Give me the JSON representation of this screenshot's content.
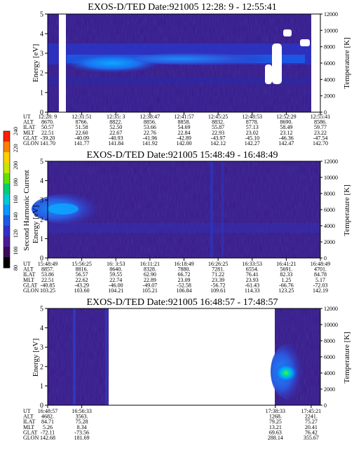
{
  "chart_data": {
    "type": "heatmap",
    "y_axis": {
      "label": "Energy [eV]",
      "range": [
        0,
        5
      ],
      "ticks": [
        "0",
        "1",
        "2",
        "3",
        "4",
        "5"
      ]
    },
    "y2_axis": {
      "label": "Temperature [K]",
      "range": [
        0,
        12000
      ],
      "ticks": [
        "0",
        "2000",
        "4000",
        "6000",
        "8000",
        "10000",
        "12000"
      ]
    },
    "colorbar": {
      "label": "Second Harmonic Current",
      "range": [
        80,
        240
      ],
      "ticks": [
        "80",
        "100",
        "120",
        "140",
        "160",
        "180",
        "200",
        "220",
        "240"
      ],
      "colors": [
        "#000000",
        "#3c0a5c",
        "#4a1a9a",
        "#3030c8",
        "#1a5ae6",
        "#0a96ff",
        "#00c8d2",
        "#00d070",
        "#60e000",
        "#c8e600",
        "#ffd000",
        "#ff8000",
        "#ff1e00"
      ]
    },
    "panels": [
      {
        "title": "EXOS-D/TED   Date:921005  12:28: 9 - 12:55:41",
        "ephemeris": {
          "labels": [
            "UT",
            "ALT",
            "ILAT",
            "MLT",
            "GLAT",
            "GLON"
          ],
          "columns": [
            [
              "12:28: 9",
              "8670.",
              "50.57",
              "22.51",
              "-39.20",
              "141.70"
            ],
            [
              "12:31:51",
              "8766.",
              "51.58",
              "22.60",
              "-40.09",
              "141.77"
            ],
            [
              "12:35: 3",
              "8822.",
              "52.50",
              "22.67",
              "-40.93",
              "141.84"
            ],
            [
              "12:38:47",
              "8856.",
              "53.66",
              "22.76",
              "-41.96",
              "141.92"
            ],
            [
              "12:41:57",
              "8858.",
              "54.69",
              "22.84",
              "-42.89",
              "142.00"
            ],
            [
              "12:45:25",
              "8832.",
              "55.87",
              "22.93",
              "-43.97",
              "142.12"
            ],
            [
              "12:48:53",
              "8778.",
              "57.13",
              "23.02",
              "-45.10",
              "142.27"
            ],
            [
              "12:52:29",
              "8690.",
              "58.49",
              "23.12",
              "-46.36",
              "142.47"
            ],
            [
              "12:55:41",
              "8586.",
              "59.77",
              "23.22",
              "-47.54",
              "142.70"
            ]
          ]
        }
      },
      {
        "title": "EXOS-D/TED   Date:921005  15:48:49 - 16:48:49",
        "ephemeris": {
          "labels": [
            "UT",
            "ALT",
            "ILAT",
            "MLT",
            "GLAT",
            "GLON"
          ],
          "columns": [
            [
              "15:48:49",
              "8857.",
              "53.86",
              "22.51",
              "-40.85",
              "103.25"
            ],
            [
              "15:56:25",
              "8816.",
              "56.57",
              "22.62",
              "-43.29",
              "103.60"
            ],
            [
              "16: 3:53",
              "8640.",
              "59.55",
              "22.74",
              "-46.00",
              "104.21"
            ],
            [
              "16:11:21",
              "8328.",
              "62.90",
              "22.89",
              "-49.07",
              "105.21"
            ],
            [
              "16:18:49",
              "7880.",
              "66.72",
              "23.09",
              "-52.58",
              "106.84"
            ],
            [
              "16:26:25",
              "7281.",
              "71.22",
              "23.39",
              "-56.72",
              "109.61"
            ],
            [
              "16:33:53",
              "6554.",
              "76.41",
              "23.93",
              "-61.43",
              "114.33"
            ],
            [
              "16:41:21",
              "5691.",
              "82.33",
              "1.25",
              "-66.76",
              "123.25"
            ],
            [
              "16:48:49",
              "4701.",
              "84.78",
              "5.17",
              "-72.03",
              "142.19"
            ]
          ]
        }
      },
      {
        "title": "EXOS-D/TED   Date:921005  16:48:57 - 17:48:57",
        "ephemeris": {
          "labels": [
            "UT",
            "ALT",
            "ILAT",
            "MLT",
            "GLAT",
            "GLON"
          ],
          "columns": [
            [
              "16:48:57",
              "4682.",
              "84.71",
              "5.26",
              "-72.11",
              "142.68"
            ],
            [
              "16:56:33",
              "3563.",
              "75.28",
              "8.34",
              "-73.56",
              "181.69"
            ],
            [
              "17:38:33",
              "1268.",
              "79.25",
              "13.21",
              "69.63",
              "288.14"
            ],
            [
              "17:45:21",
              "2241.",
              "75.27",
              "20.41",
              "76.42",
              "355.67"
            ]
          ]
        }
      }
    ]
  }
}
